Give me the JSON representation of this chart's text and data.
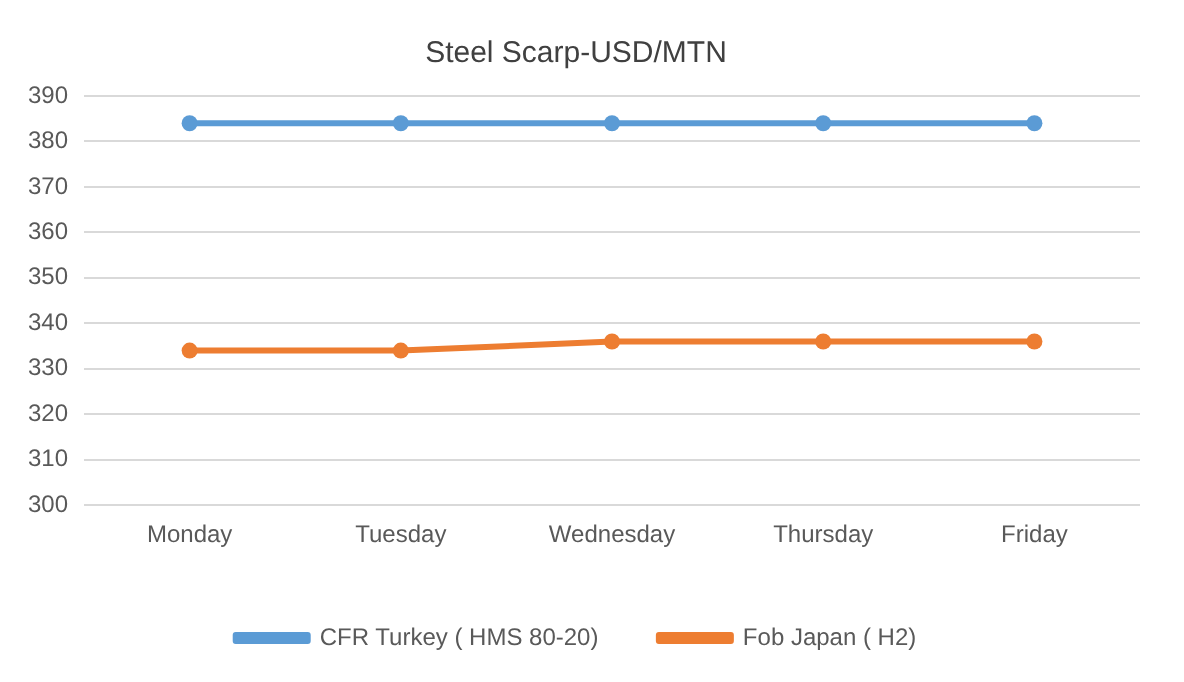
{
  "chart_data": {
    "type": "line",
    "title": "Steel Scarp-USD/MTN",
    "categories": [
      "Monday",
      "Tuesday",
      "Wednesday",
      "Thursday",
      "Friday"
    ],
    "series": [
      {
        "name": "CFR Turkey ( HMS 80-20)",
        "color": "#5b9bd5",
        "values": [
          384,
          384,
          384,
          384,
          384
        ]
      },
      {
        "name": "Fob Japan ( H2)",
        "color": "#ed7d31",
        "values": [
          334,
          334,
          336,
          336,
          336
        ]
      }
    ],
    "ylim": [
      300,
      390
    ],
    "yticks": [
      300,
      310,
      320,
      330,
      340,
      350,
      360,
      370,
      380,
      390
    ],
    "grid": "y",
    "legend": "bottom",
    "marker": "circle",
    "line_style": "solid"
  }
}
